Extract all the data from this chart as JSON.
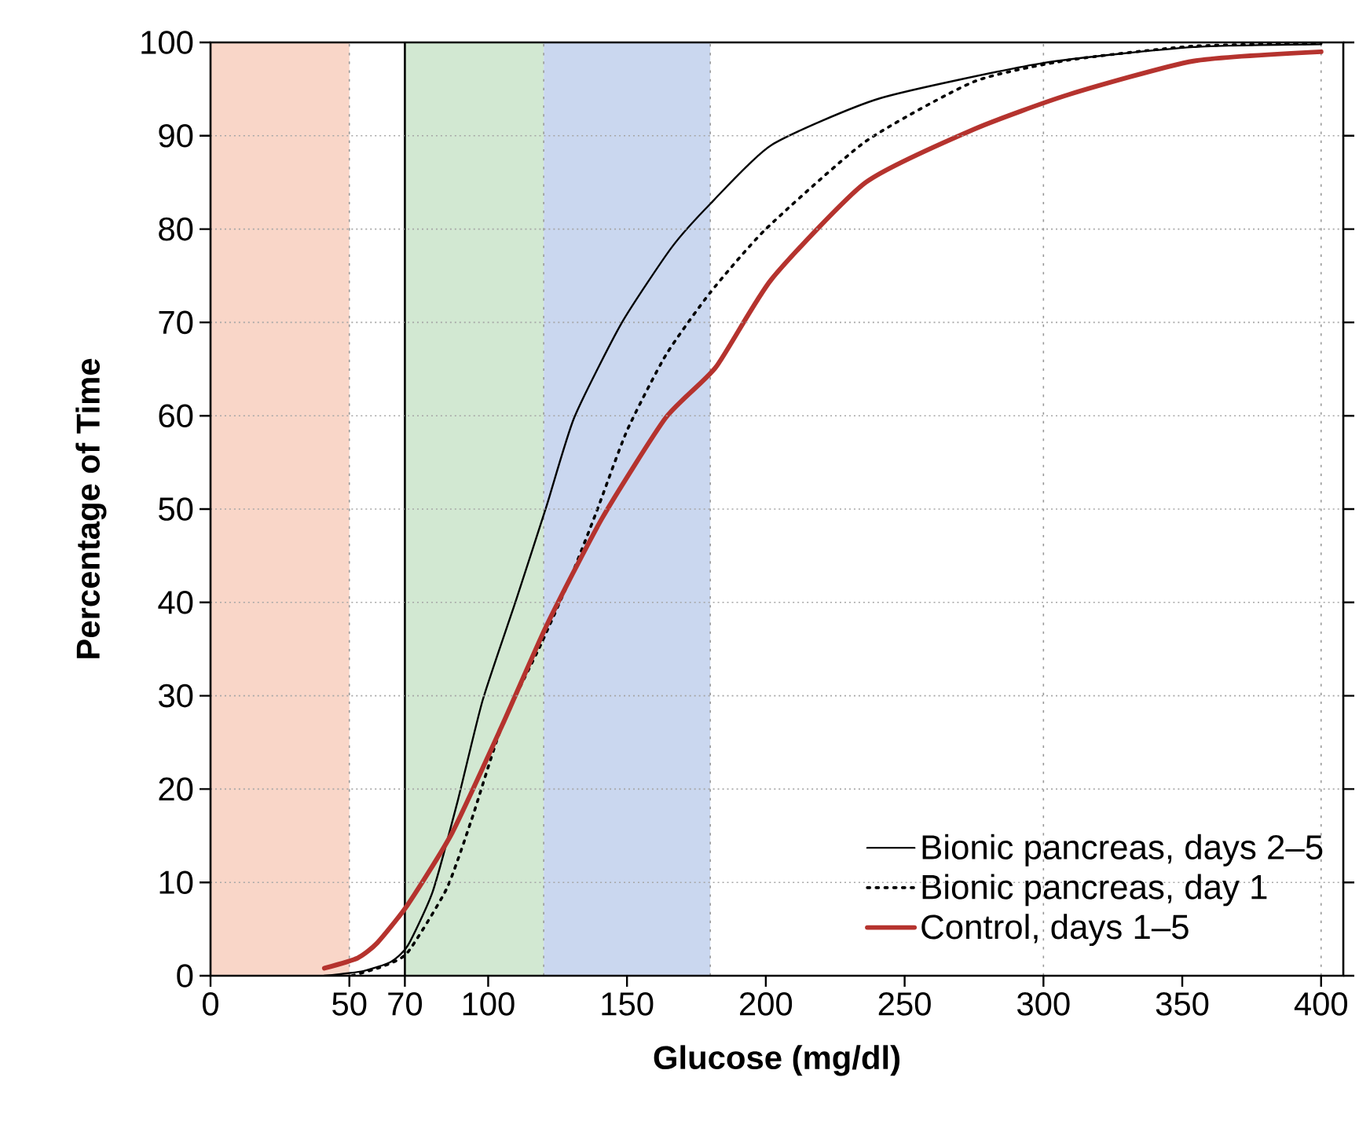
{
  "chart_data": {
    "type": "line",
    "xlabel": "Glucose (mg/dl)",
    "ylabel": "Percentage of Time",
    "xlim": [
      0,
      408
    ],
    "ylim": [
      0,
      100
    ],
    "xticks": [
      0,
      50,
      70,
      100,
      150,
      200,
      250,
      300,
      350,
      400
    ],
    "yticks": [
      0,
      10,
      20,
      30,
      40,
      50,
      60,
      70,
      80,
      90,
      100
    ],
    "grid": "y",
    "legend": "bottom right",
    "bands": [
      {
        "axis": "x",
        "from": 0,
        "to": 50,
        "color": "#f9d6c8"
      },
      {
        "axis": "x",
        "from": 70,
        "to": 120,
        "color": "#d2e8d2"
      },
      {
        "axis": "x",
        "from": 120,
        "to": 180,
        "color": "#cad7ef"
      }
    ],
    "ref_lines": [
      {
        "axis": "x",
        "value": 50,
        "color": "#999999",
        "line_style": "dotted"
      },
      {
        "axis": "x",
        "value": 70,
        "color": "#000000",
        "line_style": "solid"
      },
      {
        "axis": "x",
        "value": 120,
        "color": "#999999",
        "line_style": "dotted"
      },
      {
        "axis": "x",
        "value": 180,
        "color": "#999999",
        "line_style": "dotted"
      },
      {
        "axis": "x",
        "value": 300,
        "color": "#999999",
        "line_style": "dotted"
      },
      {
        "axis": "x",
        "value": 400,
        "color": "#999999",
        "line_style": "dotted"
      }
    ],
    "series": [
      {
        "name": "Bionic pancreas, days 2–5",
        "color": "#000000",
        "line_style": "solid",
        "x": [
          41,
          55,
          65,
          71,
          80,
          89,
          98,
          110,
          121,
          131,
          148,
          166,
          180,
          202,
          241,
          300,
          354,
          400
        ],
        "values": [
          0,
          0.5,
          1.5,
          3.2,
          9,
          18.7,
          29.5,
          40.2,
          50.3,
          59.8,
          69.9,
          78,
          82.7,
          89,
          94,
          97.8,
          99.5,
          99.8
        ]
      },
      {
        "name": "Bionic pancreas, day 1",
        "color": "#000000",
        "line_style": "dotted",
        "x": [
          51,
          62,
          71,
          85,
          94,
          105,
          119,
          130,
          139,
          150,
          164,
          180,
          200,
          236,
          275,
          309,
          354,
          400
        ],
        "values": [
          0,
          1,
          2.5,
          9.3,
          16.7,
          26.8,
          35.5,
          42.9,
          49.7,
          58.4,
          66.5,
          73.2,
          80,
          89.4,
          95.8,
          98.1,
          99.6,
          99.9
        ]
      },
      {
        "name": "Control, days 1–5",
        "color": "#b5332e",
        "line_style": "solid",
        "x": [
          41,
          53,
          60,
          71,
          87,
          105,
          121,
          141,
          164,
          182,
          202,
          236,
          275,
          309,
          354,
          400
        ],
        "values": [
          0.8,
          1.9,
          3.5,
          7.6,
          15.3,
          26.8,
          37.5,
          49,
          59.8,
          65.2,
          74.6,
          85,
          90.7,
          94.4,
          98,
          99
        ]
      }
    ]
  }
}
